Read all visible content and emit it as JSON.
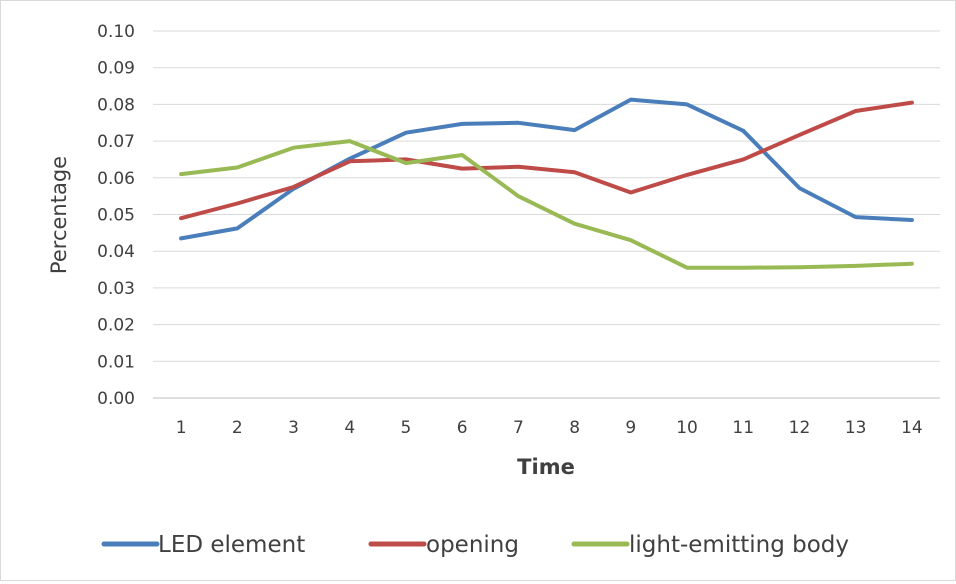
{
  "chart_data": {
    "type": "line",
    "title": "",
    "xlabel": "Time",
    "ylabel": "Percentage",
    "x": [
      1,
      2,
      3,
      4,
      5,
      6,
      7,
      8,
      9,
      10,
      11,
      12,
      13,
      14
    ],
    "x_tick_labels": [
      "1",
      "2",
      "3",
      "4",
      "5",
      "6",
      "7",
      "8",
      "9",
      "10",
      "11",
      "12",
      "13",
      "14"
    ],
    "y_tick_labels": [
      "0.00",
      "0.01",
      "0.02",
      "0.03",
      "0.04",
      "0.05",
      "0.06",
      "0.07",
      "0.08",
      "0.09",
      "0.10"
    ],
    "ylim": [
      0,
      0.1
    ],
    "grid": "horizontal",
    "legend_position": "bottom",
    "series": [
      {
        "name": "LED element",
        "color": "#4a7ebb",
        "values": [
          0.0435,
          0.0462,
          0.057,
          0.0652,
          0.0723,
          0.0747,
          0.075,
          0.073,
          0.0813,
          0.08,
          0.0728,
          0.0572,
          0.0493,
          0.0485
        ]
      },
      {
        "name": "opening",
        "color": "#be4b48",
        "values": [
          0.049,
          0.053,
          0.0575,
          0.0645,
          0.065,
          0.0625,
          0.063,
          0.0615,
          0.056,
          0.0608,
          0.065,
          0.0717,
          0.0782,
          0.0805
        ]
      },
      {
        "name": "light-emitting body",
        "color": "#98b954",
        "values": [
          0.061,
          0.0628,
          0.0682,
          0.07,
          0.064,
          0.0662,
          0.055,
          0.0475,
          0.043,
          0.0355,
          0.0355,
          0.0356,
          0.036,
          0.0366
        ]
      }
    ]
  }
}
